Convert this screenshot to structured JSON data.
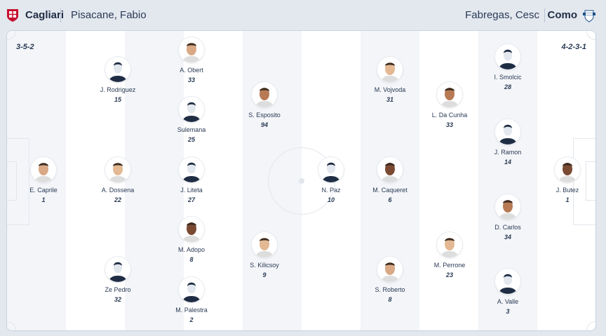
{
  "home": {
    "team": "Cagliari",
    "coach": "Pisacane, Fabio",
    "formation": "3-5-2",
    "crest_color": "#c8102e",
    "players": [
      {
        "name": "E. Caprile",
        "number": "1",
        "photo": true
      },
      {
        "name": "J. Rodriguez",
        "number": "15",
        "photo": false
      },
      {
        "name": "A. Dossena",
        "number": "22",
        "photo": true
      },
      {
        "name": "Ze Pedro",
        "number": "32",
        "photo": false
      },
      {
        "name": "A. Obert",
        "number": "33",
        "photo": true
      },
      {
        "name": "Sulemana",
        "number": "25",
        "photo": false
      },
      {
        "name": "J. Liteta",
        "number": "27",
        "photo": false
      },
      {
        "name": "M. Adopo",
        "number": "8",
        "photo": true
      },
      {
        "name": "M. Palestra",
        "number": "2",
        "photo": false
      },
      {
        "name": "S. Esposito",
        "number": "94",
        "photo": true
      },
      {
        "name": "S. Kilicsoy",
        "number": "9",
        "photo": true
      }
    ]
  },
  "away": {
    "team": "Como",
    "coach": "Fabregas, Cesc",
    "formation": "4-2-3-1",
    "crest_color": "#1b4f8a",
    "players": [
      {
        "name": "N. Paz",
        "number": "10",
        "photo": false
      },
      {
        "name": "M. Vojvoda",
        "number": "31",
        "photo": true
      },
      {
        "name": "M. Caqueret",
        "number": "6",
        "photo": true
      },
      {
        "name": "S. Roberto",
        "number": "8",
        "photo": true
      },
      {
        "name": "L. Da Cunha",
        "number": "33",
        "photo": true
      },
      {
        "name": "M. Perrone",
        "number": "23",
        "photo": true
      },
      {
        "name": "I. Smolcic",
        "number": "28",
        "photo": false
      },
      {
        "name": "J. Ramon",
        "number": "14",
        "photo": false
      },
      {
        "name": "D. Carlos",
        "number": "34",
        "photo": true
      },
      {
        "name": "A. Valle",
        "number": "3",
        "photo": false
      },
      {
        "name": "J. Butez",
        "number": "1",
        "photo": true
      }
    ]
  }
}
